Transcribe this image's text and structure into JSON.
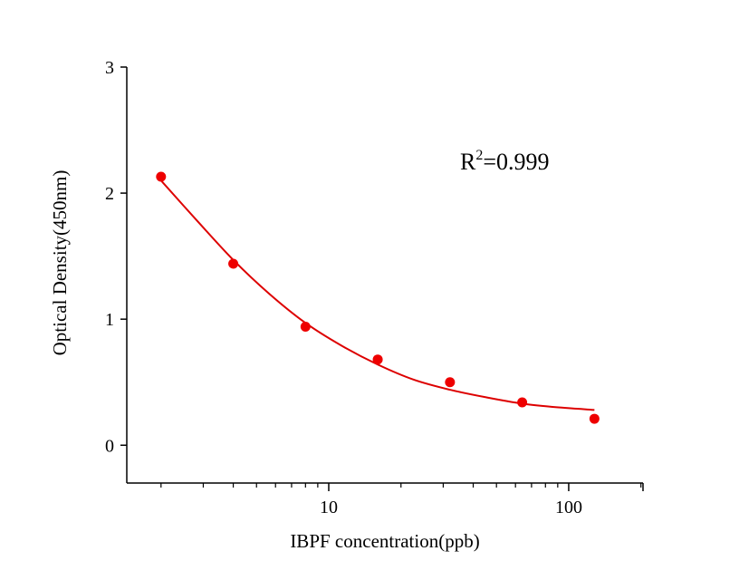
{
  "chart_data": {
    "type": "scatter",
    "title": "",
    "xlabel": "IBPF concentration(ppb)",
    "ylabel": "Optical Density(450nm)",
    "xscale": "log",
    "xlim": [
      1.44,
      204
    ],
    "ylim": [
      -0.3,
      3
    ],
    "x_ticks": [
      10,
      100
    ],
    "x_tick_labels": [
      "10",
      "100"
    ],
    "x_minor_ticks": [
      2,
      3,
      4,
      5,
      6,
      7,
      8,
      9,
      20,
      30,
      40,
      50,
      60,
      70,
      80,
      90,
      200
    ],
    "y_ticks": [
      0,
      1,
      2,
      3
    ],
    "y_tick_labels": [
      "0",
      "1",
      "2",
      "3"
    ],
    "grid": false,
    "annotation": {
      "prefix": "R",
      "sup": "2",
      "suffix": "=0.999"
    },
    "series": [
      {
        "name": "measured",
        "kind": "points",
        "color": "#ee0000",
        "x": [
          2,
          4,
          8,
          16,
          32,
          64,
          128
        ],
        "y": [
          2.13,
          1.44,
          0.94,
          0.68,
          0.5,
          0.34,
          0.21
        ]
      },
      {
        "name": "fit",
        "kind": "line",
        "color": "#dd0000",
        "x": [
          2,
          2.83,
          4,
          5.66,
          8,
          11.3,
          16,
          22.6,
          32,
          45.3,
          64,
          90.5,
          128
        ],
        "y": [
          2.1,
          1.78,
          1.47,
          1.2,
          0.97,
          0.79,
          0.64,
          0.52,
          0.44,
          0.38,
          0.33,
          0.3,
          0.28
        ]
      }
    ]
  }
}
